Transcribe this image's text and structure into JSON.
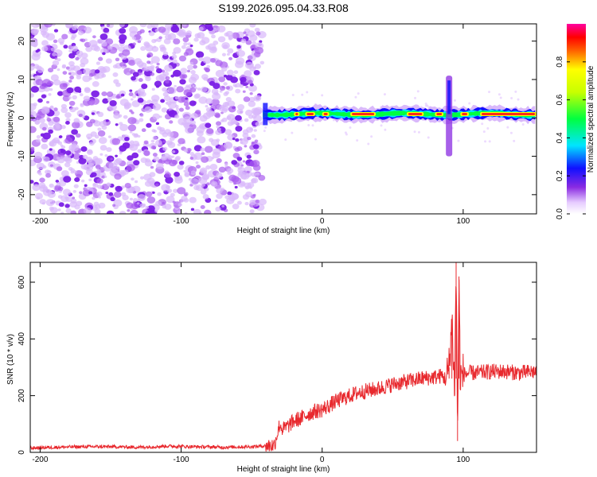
{
  "title": "S199.2026.095.04.33.R08",
  "chart_data": [
    {
      "type": "heatmap",
      "xlabel": "Height of straight line (km)",
      "ylabel": "Frequency (Hz)",
      "xlim": [
        -207,
        152
      ],
      "ylim": [
        -25,
        24.5
      ],
      "xticks": [
        -200,
        -100,
        0,
        100
      ],
      "yticks": [
        -20,
        -10,
        0,
        10,
        20
      ],
      "colorbar": {
        "label": "Normalized spectral amplitude",
        "range": [
          0,
          1
        ],
        "ticks": [
          "0.0",
          "0.2",
          "0.4",
          "0.6",
          "0.8"
        ]
      },
      "features": {
        "noise_region_x": [
          -207,
          -42
        ],
        "signal_region_x": [
          -42,
          152
        ],
        "carrier_frequency_hz": 1.0,
        "spike_x": 90,
        "spike_freq_range": [
          -10,
          11
        ],
        "colors": [
          "#ffffff",
          "#8a2be2",
          "#0000ff",
          "#00ffff",
          "#00ff00",
          "#ffff00",
          "#ff0000",
          "#ff00ff"
        ]
      }
    },
    {
      "type": "line",
      "xlabel": "Height of straight line (km)",
      "ylabel": "SNR (10 * v/v)",
      "xlim": [
        -207,
        152
      ],
      "ylim": [
        0,
        670
      ],
      "xticks": [
        -200,
        -100,
        0,
        100
      ],
      "yticks": [
        0,
        200,
        400,
        600
      ],
      "color": "#e8292e",
      "series": [
        {
          "x": [
            -207,
            -190,
            -170,
            -150,
            -130,
            -110,
            -90,
            -70,
            -50,
            -34,
            -30,
            -28,
            -25,
            -20,
            -15,
            -10,
            -5,
            0,
            5,
            10,
            15,
            20,
            25,
            30,
            40,
            50,
            60,
            70,
            80,
            85,
            88,
            90,
            92,
            94,
            95,
            96,
            97,
            98,
            100,
            105,
            110,
            120,
            130,
            140,
            152
          ],
          "y": [
            15,
            18,
            20,
            20,
            18,
            22,
            20,
            18,
            20,
            25,
            100,
            80,
            90,
            110,
            120,
            135,
            145,
            150,
            165,
            180,
            190,
            200,
            210,
            215,
            225,
            240,
            250,
            260,
            265,
            270,
            255,
            300,
            470,
            220,
            670,
            50,
            600,
            260,
            275,
            280,
            280,
            285,
            285,
            280,
            285
          ]
        }
      ]
    }
  ]
}
